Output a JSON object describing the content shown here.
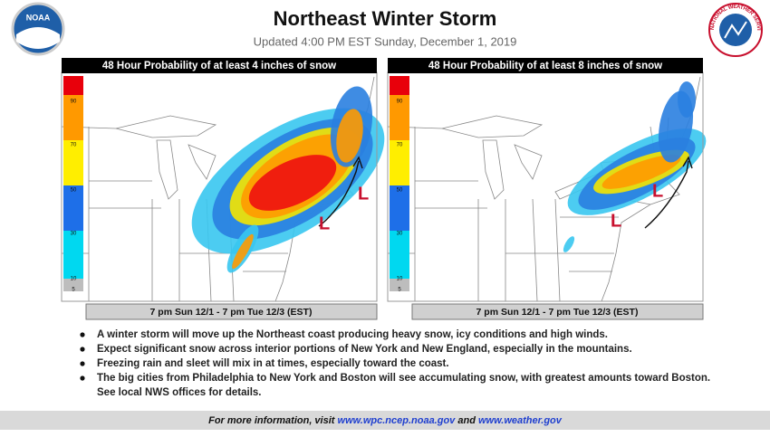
{
  "header": {
    "title": "Northeast Winter Storm",
    "subtitle": "Updated 4:00 PM EST Sunday, December 1, 2019",
    "logo_left": "NOAA",
    "logo_right": "NATIONAL WEATHER SERVICE"
  },
  "panels": [
    {
      "title": "48 Hour Probability of at least 4 inches of snow",
      "legend_labels": [
        90,
        70,
        50,
        30,
        10,
        5
      ],
      "low_labels": [
        "L",
        "L"
      ],
      "period": "7 pm Sun 12/1 - 7 pm Tue 12/3 (EST)"
    },
    {
      "title": "48 Hour Probability of at least 8 inches of snow",
      "legend_labels": [
        90,
        70,
        50,
        30,
        10,
        5
      ],
      "low_labels": [
        "L",
        "L"
      ],
      "period": "7 pm Sun 12/1 - 7 pm Tue 12/3 (EST)"
    }
  ],
  "bullets": [
    "A winter storm will move up the Northeast coast producing heavy snow, icy conditions and high winds.",
    "Expect significant snow across interior portions of New York and New England, especially in the mountains.",
    "Freezing rain and sleet will mix in at times, especially toward the coast.",
    "The big cities from Philadelphia to New York and Boston will see accumulating snow, with greatest amounts toward Boston.  See local NWS offices for details."
  ],
  "footer": {
    "prefix": "For more information, visit",
    "link1": "www.wpc.ncep.noaa.gov",
    "conj": "and",
    "link2": "www.weather.gov"
  }
}
